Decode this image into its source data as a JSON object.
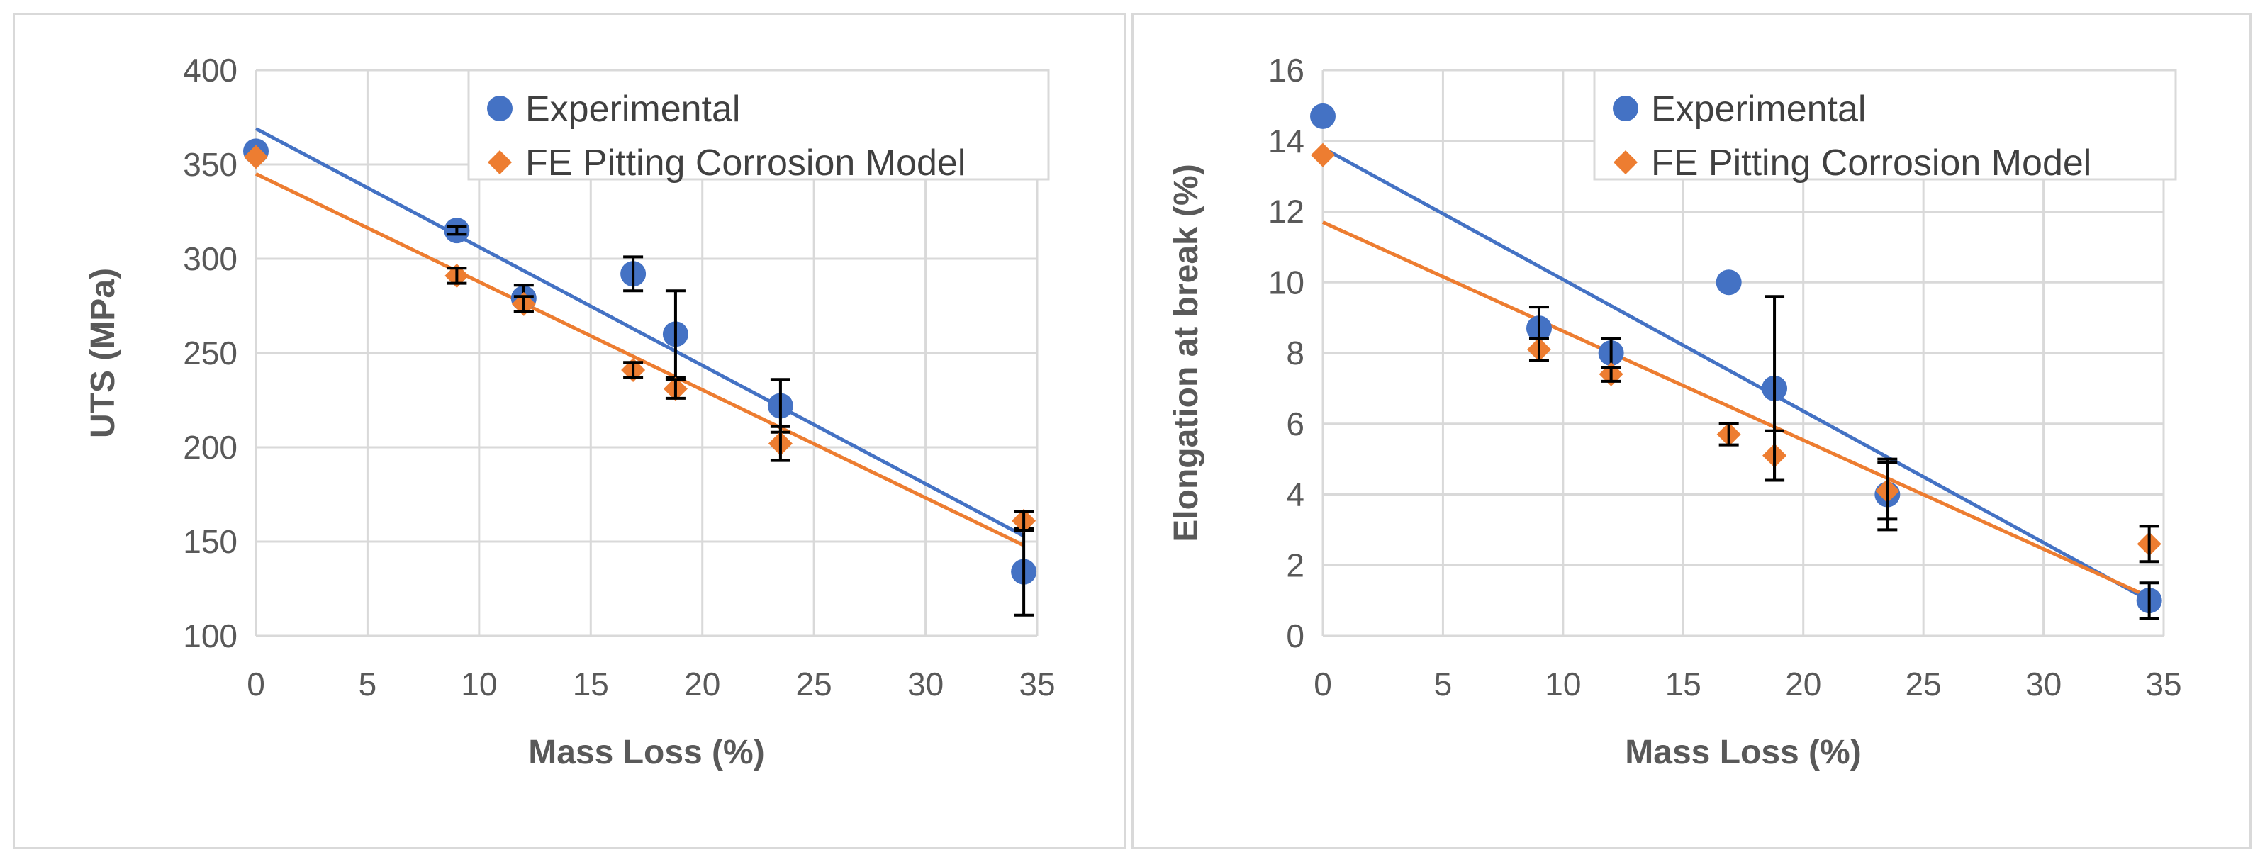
{
  "colors": {
    "experimental": "#4472C4",
    "model": "#ED7D31",
    "grid": "#d9d9d9",
    "text": "#595959",
    "errorbar": "#000000"
  },
  "chart_data": [
    {
      "type": "scatter",
      "id": "uts",
      "title": "",
      "xlabel": "Mass Loss (%)",
      "ylabel": "UTS (MPa)",
      "xlim": [
        0,
        35
      ],
      "ylim": [
        100,
        400
      ],
      "xticks": [
        0,
        5,
        10,
        15,
        20,
        25,
        30,
        35
      ],
      "yticks": [
        100,
        150,
        200,
        250,
        300,
        350,
        400
      ],
      "legend": {
        "position": "top-right",
        "entries": [
          "Experimental",
          "FE Pitting Corrosion Model"
        ]
      },
      "series": [
        {
          "name": "Experimental",
          "marker": "circle",
          "color": "#4472C4",
          "points": [
            {
              "x": 0,
              "y": 357,
              "err": 0
            },
            {
              "x": 9,
              "y": 315,
              "err": 2
            },
            {
              "x": 12,
              "y": 279,
              "err": 7
            },
            {
              "x": 16.9,
              "y": 292,
              "err": 9
            },
            {
              "x": 18.8,
              "y": 260,
              "err": 23
            },
            {
              "x": 23.5,
              "y": 222,
              "err": 14
            },
            {
              "x": 34.4,
              "y": 134,
              "err": 23
            }
          ],
          "trendline": [
            [
              0,
              369
            ],
            [
              34.4,
              153
            ]
          ]
        },
        {
          "name": "FE Pitting Corrosion Model",
          "marker": "diamond",
          "color": "#ED7D31",
          "points": [
            {
              "x": 0,
              "y": 354,
              "err": 0
            },
            {
              "x": 9,
              "y": 291,
              "err": 4
            },
            {
              "x": 12,
              "y": 276,
              "err": 4
            },
            {
              "x": 16.9,
              "y": 241,
              "err": 4
            },
            {
              "x": 18.8,
              "y": 231,
              "err": 5
            },
            {
              "x": 23.5,
              "y": 202,
              "err": 9
            },
            {
              "x": 34.4,
              "y": 161,
              "err": 5
            }
          ],
          "trendline": [
            [
              0,
              345
            ],
            [
              34.4,
              148
            ]
          ]
        }
      ]
    },
    {
      "type": "scatter",
      "id": "elongation",
      "title": "",
      "xlabel": "Mass Loss (%)",
      "ylabel": "Elongation at break (%)",
      "xlim": [
        0,
        35
      ],
      "ylim": [
        0,
        16
      ],
      "xticks": [
        0,
        5,
        10,
        15,
        20,
        25,
        30,
        35
      ],
      "yticks": [
        0,
        2,
        4,
        6,
        8,
        10,
        12,
        14,
        16
      ],
      "legend": {
        "position": "top-right",
        "entries": [
          "Experimental",
          "FE Pitting Corrosion Model"
        ]
      },
      "series": [
        {
          "name": "Experimental",
          "marker": "circle",
          "color": "#4472C4",
          "points": [
            {
              "x": 0,
              "y": 14.7,
              "err": 0
            },
            {
              "x": 9,
              "y": 8.7,
              "err": 0.6
            },
            {
              "x": 12,
              "y": 8.0,
              "err": 0.4
            },
            {
              "x": 16.9,
              "y": 10.0,
              "err": 0
            },
            {
              "x": 18.8,
              "y": 7.0,
              "err": 2.6
            },
            {
              "x": 23.5,
              "y": 4.0,
              "err": 1.0
            },
            {
              "x": 34.4,
              "y": 1.0,
              "err": 0.5
            }
          ],
          "trendline": [
            [
              0,
              13.8
            ],
            [
              34.4,
              1.0
            ]
          ]
        },
        {
          "name": "FE Pitting Corrosion Model",
          "marker": "diamond",
          "color": "#ED7D31",
          "points": [
            {
              "x": 0,
              "y": 13.6,
              "err": 0
            },
            {
              "x": 9,
              "y": 8.1,
              "err": 0.3
            },
            {
              "x": 12,
              "y": 7.4,
              "err": 0.2
            },
            {
              "x": 16.9,
              "y": 5.7,
              "err": 0.3
            },
            {
              "x": 18.8,
              "y": 5.1,
              "err": 0.7
            },
            {
              "x": 23.5,
              "y": 4.1,
              "err": 0.8
            },
            {
              "x": 34.4,
              "y": 2.6,
              "err": 0.5
            }
          ],
          "trendline": [
            [
              0,
              11.7
            ],
            [
              34.4,
              1.1
            ]
          ]
        }
      ]
    }
  ]
}
